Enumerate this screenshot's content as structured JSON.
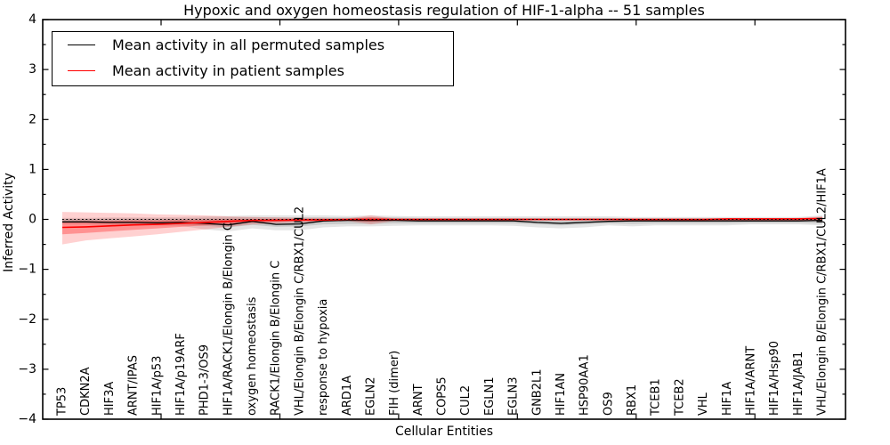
{
  "chart_data": {
    "type": "line",
    "title": "Hypoxic and oxygen homeostasis regulation of HIF-1-alpha -- 51 samples",
    "xlabel": "Cellular Entities",
    "ylabel": "Inferred Activity",
    "ylim": [
      -4,
      4
    ],
    "ytick_labels": [
      "4",
      "3",
      "2",
      "1",
      "0",
      "−1",
      "−2",
      "−3",
      "−4"
    ],
    "grid": false,
    "legend_position": "upper left",
    "zero_reference_line": {
      "value": 0,
      "style": "dotted",
      "color": "#000000"
    },
    "categories": [
      "TP53",
      "CDKN2A",
      "HIF3A",
      "ARNT/IPAS",
      "HIF1A/p53",
      "HIF1A/p19ARF",
      "PHD1-3/OS9",
      "HIF1A/RACK1/Elongin B/Elongin C",
      "oxygen homeostasis",
      "RACK1/Elongin B/Elongin C",
      "VHL/Elongin B/Elongin C/RBX1/CUL2",
      "response to hypoxia",
      "ARD1A",
      "EGLN2",
      "FIH (dimer)",
      "ARNT",
      "COPS5",
      "CUL2",
      "EGLN1",
      "EGLN3",
      "GNB2L1",
      "HIF1AN",
      "HSP90AA1",
      "OS9",
      "RBX1",
      "TCEB1",
      "TCEB2",
      "VHL",
      "HIF1A",
      "HIF1A/ARNT",
      "HIF1A/Hsp90",
      "HIF1A/JAB1",
      "VHL/Elongin B/Elongin C/RBX1/CUL2/HIF1A"
    ],
    "series": [
      {
        "name": "Mean activity in all permuted samples",
        "color": "#000000",
        "values": [
          -0.05,
          -0.05,
          -0.06,
          -0.06,
          -0.07,
          -0.06,
          -0.08,
          -0.11,
          -0.04,
          -0.1,
          -0.09,
          -0.03,
          -0.02,
          -0.02,
          -0.02,
          -0.03,
          -0.03,
          -0.03,
          -0.03,
          -0.03,
          -0.06,
          -0.08,
          -0.06,
          -0.04,
          -0.03,
          -0.03,
          -0.03,
          -0.03,
          -0.03,
          -0.03,
          -0.03,
          -0.03,
          -0.02
        ]
      },
      {
        "name": "Mean activity in patient samples",
        "color": "#ff0000",
        "values": [
          -0.16,
          -0.15,
          -0.13,
          -0.11,
          -0.1,
          -0.08,
          -0.06,
          -0.04,
          -0.02,
          -0.02,
          -0.01,
          -0.01,
          0,
          0,
          0,
          0,
          0,
          0,
          0,
          0,
          0,
          0,
          0,
          0,
          0,
          0,
          0,
          0,
          0.01,
          0.01,
          0.01,
          0.01,
          0.02
        ]
      }
    ],
    "bands": [
      {
        "name": "permuted-range-outer",
        "color": "rgba(0,0,0,0.10)",
        "lo": [
          -0.1,
          -0.1,
          -0.11,
          -0.11,
          -0.12,
          -0.13,
          -0.2,
          -0.24,
          -0.18,
          -0.22,
          -0.22,
          -0.16,
          -0.14,
          -0.14,
          -0.13,
          -0.12,
          -0.12,
          -0.12,
          -0.12,
          -0.13,
          -0.16,
          -0.18,
          -0.16,
          -0.12,
          -0.14,
          -0.12,
          -0.12,
          -0.12,
          -0.12,
          -0.1,
          -0.1,
          -0.1,
          -0.12
        ],
        "hi": [
          0.03,
          0.03,
          0.04,
          0.04,
          0.04,
          0.05,
          0.06,
          0.07,
          0.08,
          0.08,
          0.08,
          0.08,
          0.07,
          0.08,
          0.07,
          0.06,
          0.06,
          0.06,
          0.06,
          0.06,
          0.06,
          0.06,
          0.06,
          0.06,
          0.05,
          0.05,
          0.05,
          0.05,
          0.05,
          0.05,
          0.05,
          0.05,
          0.08
        ]
      },
      {
        "name": "permuted-range-inner",
        "color": "rgba(0,0,0,0.12)",
        "lo": [
          -0.07,
          -0.07,
          -0.08,
          -0.08,
          -0.09,
          -0.09,
          -0.13,
          -0.16,
          -0.11,
          -0.15,
          -0.14,
          -0.1,
          -0.09,
          -0.09,
          -0.08,
          -0.08,
          -0.08,
          -0.08,
          -0.08,
          -0.08,
          -0.1,
          -0.12,
          -0.1,
          -0.08,
          -0.09,
          -0.08,
          -0.08,
          -0.08,
          -0.08,
          -0.07,
          -0.07,
          -0.07,
          -0.08
        ],
        "hi": [
          0.01,
          0.01,
          0.02,
          0.02,
          0.02,
          0.02,
          0.03,
          0.04,
          0.04,
          0.04,
          0.04,
          0.04,
          0.04,
          0.04,
          0.04,
          0.03,
          0.03,
          0.03,
          0.03,
          0.03,
          0.03,
          0.03,
          0.03,
          0.03,
          0.02,
          0.02,
          0.02,
          0.02,
          0.02,
          0.02,
          0.02,
          0.02,
          0.04
        ]
      },
      {
        "name": "patient-range-outer",
        "color": "rgba(255,0,0,0.18)",
        "lo": [
          -0.5,
          -0.42,
          -0.38,
          -0.34,
          -0.3,
          -0.25,
          -0.2,
          -0.15,
          -0.1,
          -0.08,
          -0.06,
          -0.05,
          -0.03,
          -0.1,
          -0.03,
          -0.02,
          -0.02,
          -0.02,
          -0.02,
          -0.02,
          -0.02,
          -0.02,
          -0.02,
          -0.02,
          -0.02,
          -0.02,
          -0.02,
          -0.02,
          -0.02,
          -0.02,
          -0.02,
          -0.03,
          -0.04
        ],
        "hi": [
          0.15,
          0.14,
          0.13,
          0.12,
          0.1,
          0.09,
          0.08,
          0.06,
          0.05,
          0.04,
          0.03,
          0.03,
          0.02,
          0.08,
          0.02,
          0.02,
          0.02,
          0.02,
          0.02,
          0.02,
          0.02,
          0.02,
          0.02,
          0.02,
          0.02,
          0.02,
          0.02,
          0.02,
          0.02,
          0.02,
          0.02,
          0.03,
          0.06
        ]
      },
      {
        "name": "patient-range-inner",
        "color": "rgba(255,0,0,0.30)",
        "lo": [
          -0.3,
          -0.27,
          -0.24,
          -0.21,
          -0.18,
          -0.15,
          -0.12,
          -0.09,
          -0.06,
          -0.05,
          -0.04,
          -0.03,
          -0.02,
          -0.05,
          -0.02,
          -0.02,
          -0.02,
          -0.02,
          -0.02,
          -0.02,
          -0.02,
          -0.02,
          -0.02,
          -0.02,
          -0.02,
          -0.02,
          -0.02,
          -0.02,
          -0.02,
          -0.02,
          -0.02,
          -0.02,
          -0.02
        ],
        "hi": [
          -0.04,
          -0.03,
          -0.03,
          -0.02,
          -0.02,
          -0.01,
          -0.01,
          0.0,
          0.0,
          0.01,
          0.01,
          0.01,
          0.01,
          0.04,
          0.01,
          0.01,
          0.01,
          0.01,
          0.01,
          0.01,
          0.01,
          0.01,
          0.01,
          0.01,
          0.01,
          0.01,
          0.01,
          0.01,
          0.01,
          0.01,
          0.01,
          0.02,
          0.03
        ]
      }
    ],
    "legend": [
      {
        "label": "Mean activity in all permuted samples",
        "color": "#000000"
      },
      {
        "label": "Mean activity in patient samples",
        "color": "#ff0000"
      }
    ]
  }
}
